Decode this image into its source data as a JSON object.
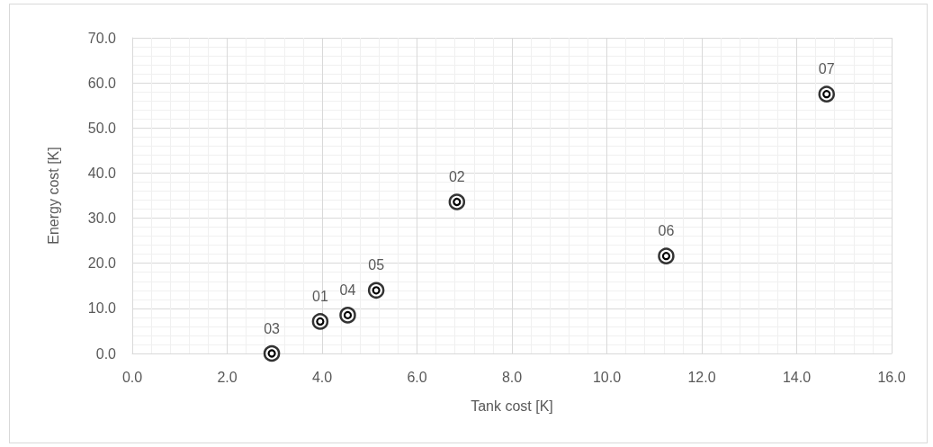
{
  "chart_data": {
    "type": "scatter",
    "xlabel": "Tank cost [K]",
    "ylabel": "Energy cost [K]",
    "x": [
      3.96,
      6.84,
      2.94,
      4.54,
      5.14,
      11.25,
      14.63
    ],
    "series": [
      {
        "color": "#000000",
        "values": [
          7.1,
          33.6,
          0.0,
          8.5,
          14.0,
          21.6,
          57.5
        ]
      }
    ],
    "xlim": [
      0,
      16
    ],
    "xticks": [
      {
        "value": 0,
        "label": "0.0"
      },
      {
        "value": 2,
        "label": "2.0"
      },
      {
        "value": 4,
        "label": "4.0"
      },
      {
        "value": 6,
        "label": "6.0"
      },
      {
        "value": 8,
        "label": "8.0"
      },
      {
        "value": 10,
        "label": "10.0"
      },
      {
        "value": 12,
        "label": "12.0"
      },
      {
        "value": 14,
        "label": "14.0"
      },
      {
        "value": 16,
        "label": "16.0"
      }
    ],
    "ylim": [
      0,
      70
    ],
    "yticks": [
      {
        "value": 0,
        "label": "0.0"
      },
      {
        "value": 10,
        "label": "10.0"
      },
      {
        "value": 20,
        "label": "20.0"
      },
      {
        "value": 30,
        "label": "30.0"
      },
      {
        "value": 40,
        "label": "40.0"
      },
      {
        "value": 50,
        "label": "50.0"
      },
      {
        "value": 60,
        "label": "60.0"
      },
      {
        "value": 70,
        "label": "70.0"
      }
    ],
    "grid": true,
    "marker": "circle",
    "annotations": [
      {
        "text": "01",
        "x": 3.96,
        "y": 7.1
      },
      {
        "text": "02",
        "x": 6.84,
        "y": 33.6
      },
      {
        "text": "03",
        "x": 2.94,
        "y": 0.0
      },
      {
        "text": "04",
        "x": 4.54,
        "y": 8.5
      },
      {
        "text": "05",
        "x": 5.14,
        "y": 14.0
      },
      {
        "text": "06",
        "x": 11.25,
        "y": 21.6
      },
      {
        "text": "07",
        "x": 14.63,
        "y": 57.5
      }
    ]
  }
}
